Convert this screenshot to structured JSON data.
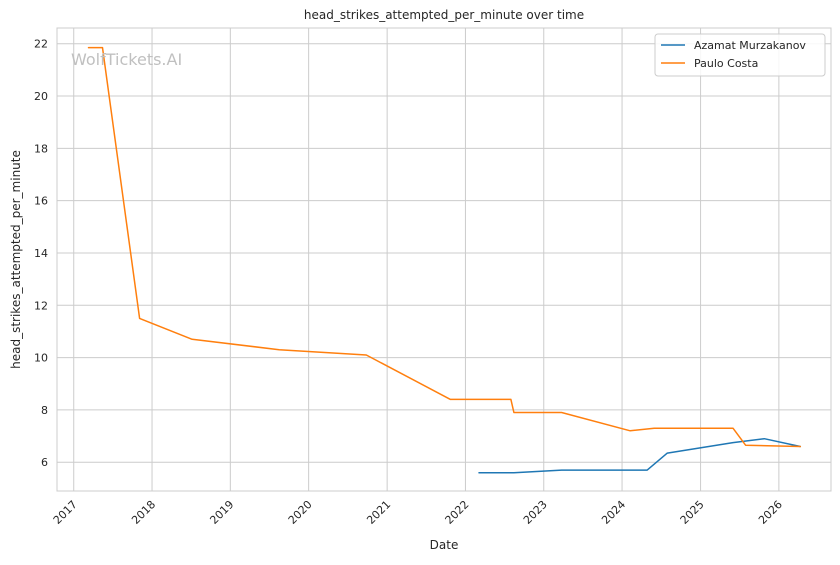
{
  "chart_data": {
    "type": "line",
    "title": "head_strikes_attempted_per_minute over time",
    "xlabel": "Date",
    "ylabel": "head_strikes_attempted_per_minute",
    "watermark": "WolfTickets.AI",
    "x_ticks": [
      "2017",
      "2018",
      "2019",
      "2020",
      "2021",
      "2022",
      "2023",
      "2024",
      "2025",
      "2026"
    ],
    "y_ticks": [
      6,
      8,
      10,
      12,
      14,
      16,
      18,
      20,
      22
    ],
    "xlim": [
      "2016-10-15",
      "2026-09-01"
    ],
    "ylim": [
      4.9,
      22.6
    ],
    "grid": true,
    "legend_position": "top-right",
    "series": [
      {
        "name": "Azamat Murzakanov",
        "color": "#1f77b4",
        "points": [
          [
            "2022-03-05",
            5.6
          ],
          [
            "2022-08-15",
            5.6
          ],
          [
            "2023-03-25",
            5.7
          ],
          [
            "2024-04-27",
            5.7
          ],
          [
            "2024-07-30",
            6.35
          ],
          [
            "2025-06-01",
            6.75
          ],
          [
            "2025-10-25",
            6.9
          ],
          [
            "2026-04-11",
            6.6
          ]
        ]
      },
      {
        "name": "Paulo Costa",
        "color": "#ff7f0e",
        "points": [
          [
            "2017-03-11",
            21.85
          ],
          [
            "2017-05-15",
            21.85
          ],
          [
            "2017-11-04",
            11.5
          ],
          [
            "2018-07-07",
            10.7
          ],
          [
            "2019-08-17",
            10.3
          ],
          [
            "2020-09-26",
            10.1
          ],
          [
            "2021-10-23",
            8.4
          ],
          [
            "2022-08-01",
            8.4
          ],
          [
            "2022-08-15",
            7.9
          ],
          [
            "2023-03-25",
            7.9
          ],
          [
            "2024-02-08",
            7.2
          ],
          [
            "2024-05-30",
            7.3
          ],
          [
            "2025-06-01",
            7.3
          ],
          [
            "2025-07-30",
            6.65
          ],
          [
            "2026-04-11",
            6.6
          ]
        ]
      }
    ]
  }
}
